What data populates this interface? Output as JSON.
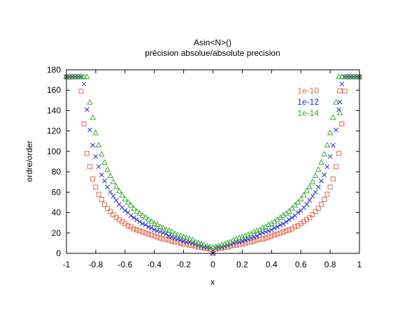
{
  "chart_data": {
    "type": "scatter",
    "title": "Asin<N>()",
    "subtitle": "précision absolue/absolute precision",
    "xlabel": "x",
    "ylabel": "ordre/order",
    "xlim": [
      -1,
      1
    ],
    "ylim": [
      0,
      180
    ],
    "x_ticks": [
      "-1",
      "-0.8",
      "-0.6",
      "-0.4",
      "-0.2",
      "0",
      "0.2",
      "0.4",
      "0.6",
      "0.8",
      "1"
    ],
    "y_ticks": [
      "0",
      "20",
      "40",
      "60",
      "80",
      "100",
      "120",
      "140",
      "160",
      "180"
    ],
    "grid": false,
    "legend_position": "top-right",
    "series": [
      {
        "name": "1e-10",
        "marker": "square",
        "color": "#e06a4e",
        "x": [
          -1.0,
          -0.98,
          -0.96,
          -0.94,
          -0.92,
          -0.9,
          -0.88,
          -0.86,
          -0.84,
          -0.82,
          -0.8,
          -0.78,
          -0.76,
          -0.74,
          -0.72,
          -0.7,
          -0.68,
          -0.66,
          -0.64,
          -0.62,
          -0.6,
          -0.58,
          -0.56,
          -0.54,
          -0.52,
          -0.5,
          -0.48,
          -0.46,
          -0.44,
          -0.42,
          -0.4,
          -0.38,
          -0.36,
          -0.34,
          -0.32,
          -0.3,
          -0.28,
          -0.26,
          -0.24,
          -0.22,
          -0.2,
          -0.18,
          -0.16,
          -0.14,
          -0.12,
          -0.1,
          -0.08,
          -0.06,
          -0.04,
          -0.02,
          0.0,
          0.02,
          0.04,
          0.06,
          0.08,
          0.1,
          0.12,
          0.14,
          0.16,
          0.18,
          0.2,
          0.22,
          0.24,
          0.26,
          0.28,
          0.3,
          0.32,
          0.34,
          0.36,
          0.38,
          0.4,
          0.42,
          0.44,
          0.46,
          0.48,
          0.5,
          0.52,
          0.54,
          0.56,
          0.58,
          0.6,
          0.62,
          0.64,
          0.66,
          0.68,
          0.7,
          0.72,
          0.74,
          0.76,
          0.78,
          0.8,
          0.82,
          0.84,
          0.86,
          0.88,
          0.9,
          0.92,
          0.94,
          0.96,
          0.98,
          1.0
        ],
        "y": [
          173,
          173,
          173,
          173,
          173,
          159,
          127,
          98,
          85,
          73,
          65,
          58,
          53,
          48,
          44,
          41,
          38,
          35,
          33,
          31,
          29,
          27,
          26,
          24,
          23,
          22,
          21,
          20,
          19,
          18,
          17,
          16,
          15,
          14,
          14,
          13,
          12,
          11,
          11,
          10,
          9,
          9,
          8,
          8,
          7,
          6,
          6,
          5,
          5,
          4,
          0,
          4,
          5,
          5,
          6,
          6,
          7,
          8,
          8,
          9,
          9,
          10,
          11,
          11,
          12,
          13,
          14,
          14,
          15,
          16,
          17,
          18,
          19,
          20,
          21,
          22,
          23,
          24,
          26,
          27,
          29,
          31,
          33,
          35,
          38,
          41,
          44,
          48,
          53,
          58,
          65,
          73,
          85,
          98,
          127,
          159,
          173,
          173,
          173,
          173,
          173
        ]
      },
      {
        "name": "1e-12",
        "marker": "cross",
        "color": "#1f2ad8",
        "x": [
          -1.0,
          -0.98,
          -0.96,
          -0.94,
          -0.92,
          -0.9,
          -0.88,
          -0.86,
          -0.84,
          -0.82,
          -0.8,
          -0.78,
          -0.76,
          -0.74,
          -0.72,
          -0.7,
          -0.68,
          -0.66,
          -0.64,
          -0.62,
          -0.6,
          -0.58,
          -0.56,
          -0.54,
          -0.52,
          -0.5,
          -0.48,
          -0.46,
          -0.44,
          -0.42,
          -0.4,
          -0.38,
          -0.36,
          -0.34,
          -0.32,
          -0.3,
          -0.28,
          -0.26,
          -0.24,
          -0.22,
          -0.2,
          -0.18,
          -0.16,
          -0.14,
          -0.12,
          -0.1,
          -0.08,
          -0.06,
          -0.04,
          -0.02,
          0.0,
          0.02,
          0.04,
          0.06,
          0.08,
          0.1,
          0.12,
          0.14,
          0.16,
          0.18,
          0.2,
          0.22,
          0.24,
          0.26,
          0.28,
          0.3,
          0.32,
          0.34,
          0.36,
          0.38,
          0.4,
          0.42,
          0.44,
          0.46,
          0.48,
          0.5,
          0.52,
          0.54,
          0.56,
          0.58,
          0.6,
          0.62,
          0.64,
          0.66,
          0.68,
          0.7,
          0.72,
          0.74,
          0.76,
          0.78,
          0.8,
          0.82,
          0.84,
          0.86,
          0.88,
          0.9,
          0.92,
          0.94,
          0.96,
          0.98,
          1.0
        ],
        "y": [
          173,
          173,
          173,
          173,
          173,
          173,
          166,
          141,
          121,
          106,
          95,
          85,
          77,
          71,
          65,
          60,
          56,
          52,
          48,
          45,
          42,
          40,
          37,
          35,
          33,
          31,
          29,
          28,
          26,
          25,
          23,
          22,
          21,
          20,
          19,
          17,
          16,
          15,
          14,
          13,
          12,
          11,
          11,
          10,
          9,
          8,
          7,
          6,
          6,
          5,
          0,
          5,
          6,
          6,
          7,
          8,
          9,
          10,
          11,
          11,
          12,
          13,
          14,
          15,
          16,
          17,
          19,
          20,
          21,
          22,
          23,
          25,
          26,
          28,
          29,
          31,
          33,
          35,
          37,
          40,
          42,
          45,
          48,
          52,
          56,
          60,
          65,
          71,
          77,
          85,
          95,
          106,
          121,
          141,
          166,
          173,
          173,
          173,
          173,
          173,
          173
        ]
      },
      {
        "name": "1e-14",
        "marker": "triangle",
        "color": "#3faa3a",
        "x": [
          -1.0,
          -0.98,
          -0.96,
          -0.94,
          -0.92,
          -0.9,
          -0.88,
          -0.86,
          -0.84,
          -0.82,
          -0.8,
          -0.78,
          -0.76,
          -0.74,
          -0.72,
          -0.7,
          -0.68,
          -0.66,
          -0.64,
          -0.62,
          -0.6,
          -0.58,
          -0.56,
          -0.54,
          -0.52,
          -0.5,
          -0.48,
          -0.46,
          -0.44,
          -0.42,
          -0.4,
          -0.38,
          -0.36,
          -0.34,
          -0.32,
          -0.3,
          -0.28,
          -0.26,
          -0.24,
          -0.22,
          -0.2,
          -0.18,
          -0.16,
          -0.14,
          -0.12,
          -0.1,
          -0.08,
          -0.06,
          -0.04,
          -0.02,
          0.0,
          0.02,
          0.04,
          0.06,
          0.08,
          0.1,
          0.12,
          0.14,
          0.16,
          0.18,
          0.2,
          0.22,
          0.24,
          0.26,
          0.28,
          0.3,
          0.32,
          0.34,
          0.36,
          0.38,
          0.4,
          0.42,
          0.44,
          0.46,
          0.48,
          0.5,
          0.52,
          0.54,
          0.56,
          0.58,
          0.6,
          0.62,
          0.64,
          0.66,
          0.68,
          0.7,
          0.72,
          0.74,
          0.76,
          0.78,
          0.8,
          0.82,
          0.84,
          0.86,
          0.88,
          0.9,
          0.92,
          0.94,
          0.96,
          0.98,
          1.0
        ],
        "y": [
          173,
          173,
          173,
          173,
          173,
          173,
          173,
          173,
          148,
          133,
          118,
          106,
          97,
          89,
          82,
          76,
          70,
          65,
          61,
          57,
          53,
          50,
          47,
          44,
          41,
          39,
          37,
          35,
          33,
          31,
          29,
          28,
          26,
          25,
          23,
          22,
          21,
          19,
          18,
          17,
          16,
          15,
          14,
          13,
          11,
          10,
          9,
          8,
          7,
          6,
          6,
          6,
          7,
          8,
          9,
          10,
          11,
          13,
          14,
          15,
          16,
          17,
          18,
          19,
          21,
          22,
          23,
          25,
          26,
          28,
          29,
          31,
          33,
          35,
          37,
          39,
          41,
          44,
          47,
          50,
          53,
          57,
          61,
          65,
          70,
          76,
          82,
          89,
          97,
          106,
          118,
          133,
          148,
          173,
          173,
          173,
          173,
          173,
          173,
          173,
          173
        ]
      }
    ]
  }
}
